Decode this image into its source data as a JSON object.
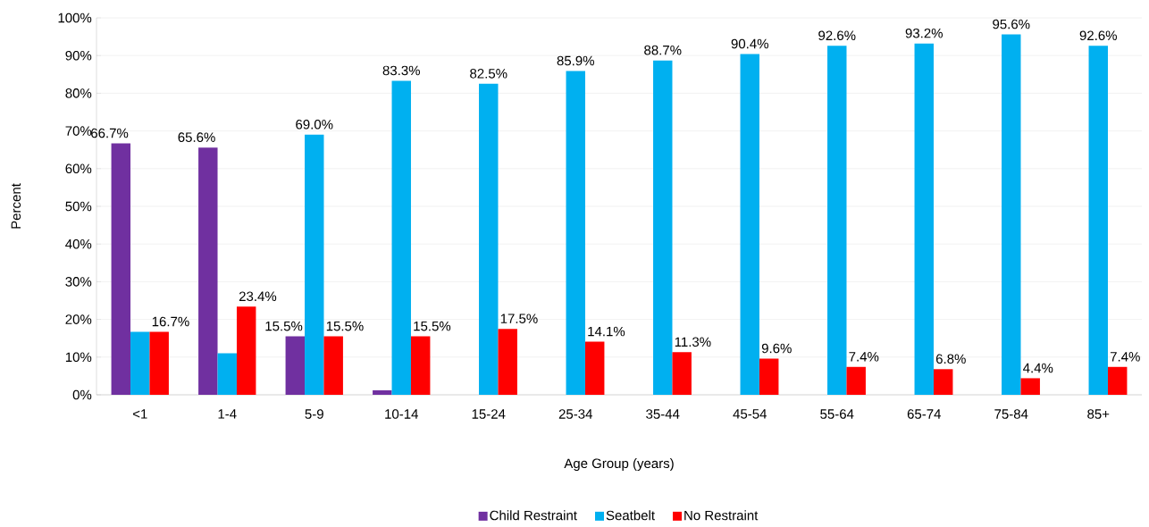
{
  "chart_data": {
    "type": "bar",
    "xlabel": "Age Group (years)",
    "ylabel": "Percent",
    "categories": [
      "<1",
      "1-4",
      "5-9",
      "10-14",
      "15-24",
      "25-34",
      "35-44",
      "45-54",
      "55-64",
      "65-74",
      "75-84",
      "85+"
    ],
    "series": [
      {
        "name": "Child Restraint",
        "color": "#7030a0",
        "values": [
          66.7,
          65.6,
          15.5,
          1.2,
          0,
          0,
          0,
          0,
          0,
          0,
          0,
          0
        ],
        "value_labels": [
          "66.7%",
          "65.6%",
          "15.5%",
          null,
          null,
          null,
          null,
          null,
          null,
          null,
          null,
          null
        ]
      },
      {
        "name": "Seatbelt",
        "color": "#00b0f0",
        "values": [
          16.7,
          11.0,
          69.0,
          83.3,
          82.5,
          85.9,
          88.7,
          90.4,
          92.6,
          93.2,
          95.6,
          92.6
        ],
        "value_labels": [
          null,
          null,
          "69.0%",
          "83.3%",
          "82.5%",
          "85.9%",
          "88.7%",
          "90.4%",
          "92.6%",
          "93.2%",
          "95.6%",
          "92.6%"
        ]
      },
      {
        "name": "No Restraint",
        "color": "#ff0000",
        "values": [
          16.7,
          23.4,
          15.5,
          15.5,
          17.5,
          14.1,
          11.3,
          9.6,
          7.4,
          6.8,
          4.4,
          7.4
        ],
        "value_labels": [
          "16.7%",
          "23.4%",
          "15.5%",
          "15.5%",
          "17.5%",
          "14.1%",
          "11.3%",
          "9.6%",
          "7.4%",
          "6.8%",
          "4.4%",
          "7.4%"
        ]
      }
    ],
    "ylim": [
      0,
      100
    ],
    "yticks": [
      {
        "value": 0,
        "label": "0%"
      },
      {
        "value": 10,
        "label": "10%"
      },
      {
        "value": 20,
        "label": "20%"
      },
      {
        "value": 30,
        "label": "30%"
      },
      {
        "value": 40,
        "label": "40%"
      },
      {
        "value": 50,
        "label": "50%"
      },
      {
        "value": 60,
        "label": "60%"
      },
      {
        "value": 70,
        "label": "70%"
      },
      {
        "value": 80,
        "label": "80%"
      },
      {
        "value": 90,
        "label": "90%"
      },
      {
        "value": 100,
        "label": "100%"
      }
    ],
    "grid": "y",
    "legend": "bottom"
  }
}
